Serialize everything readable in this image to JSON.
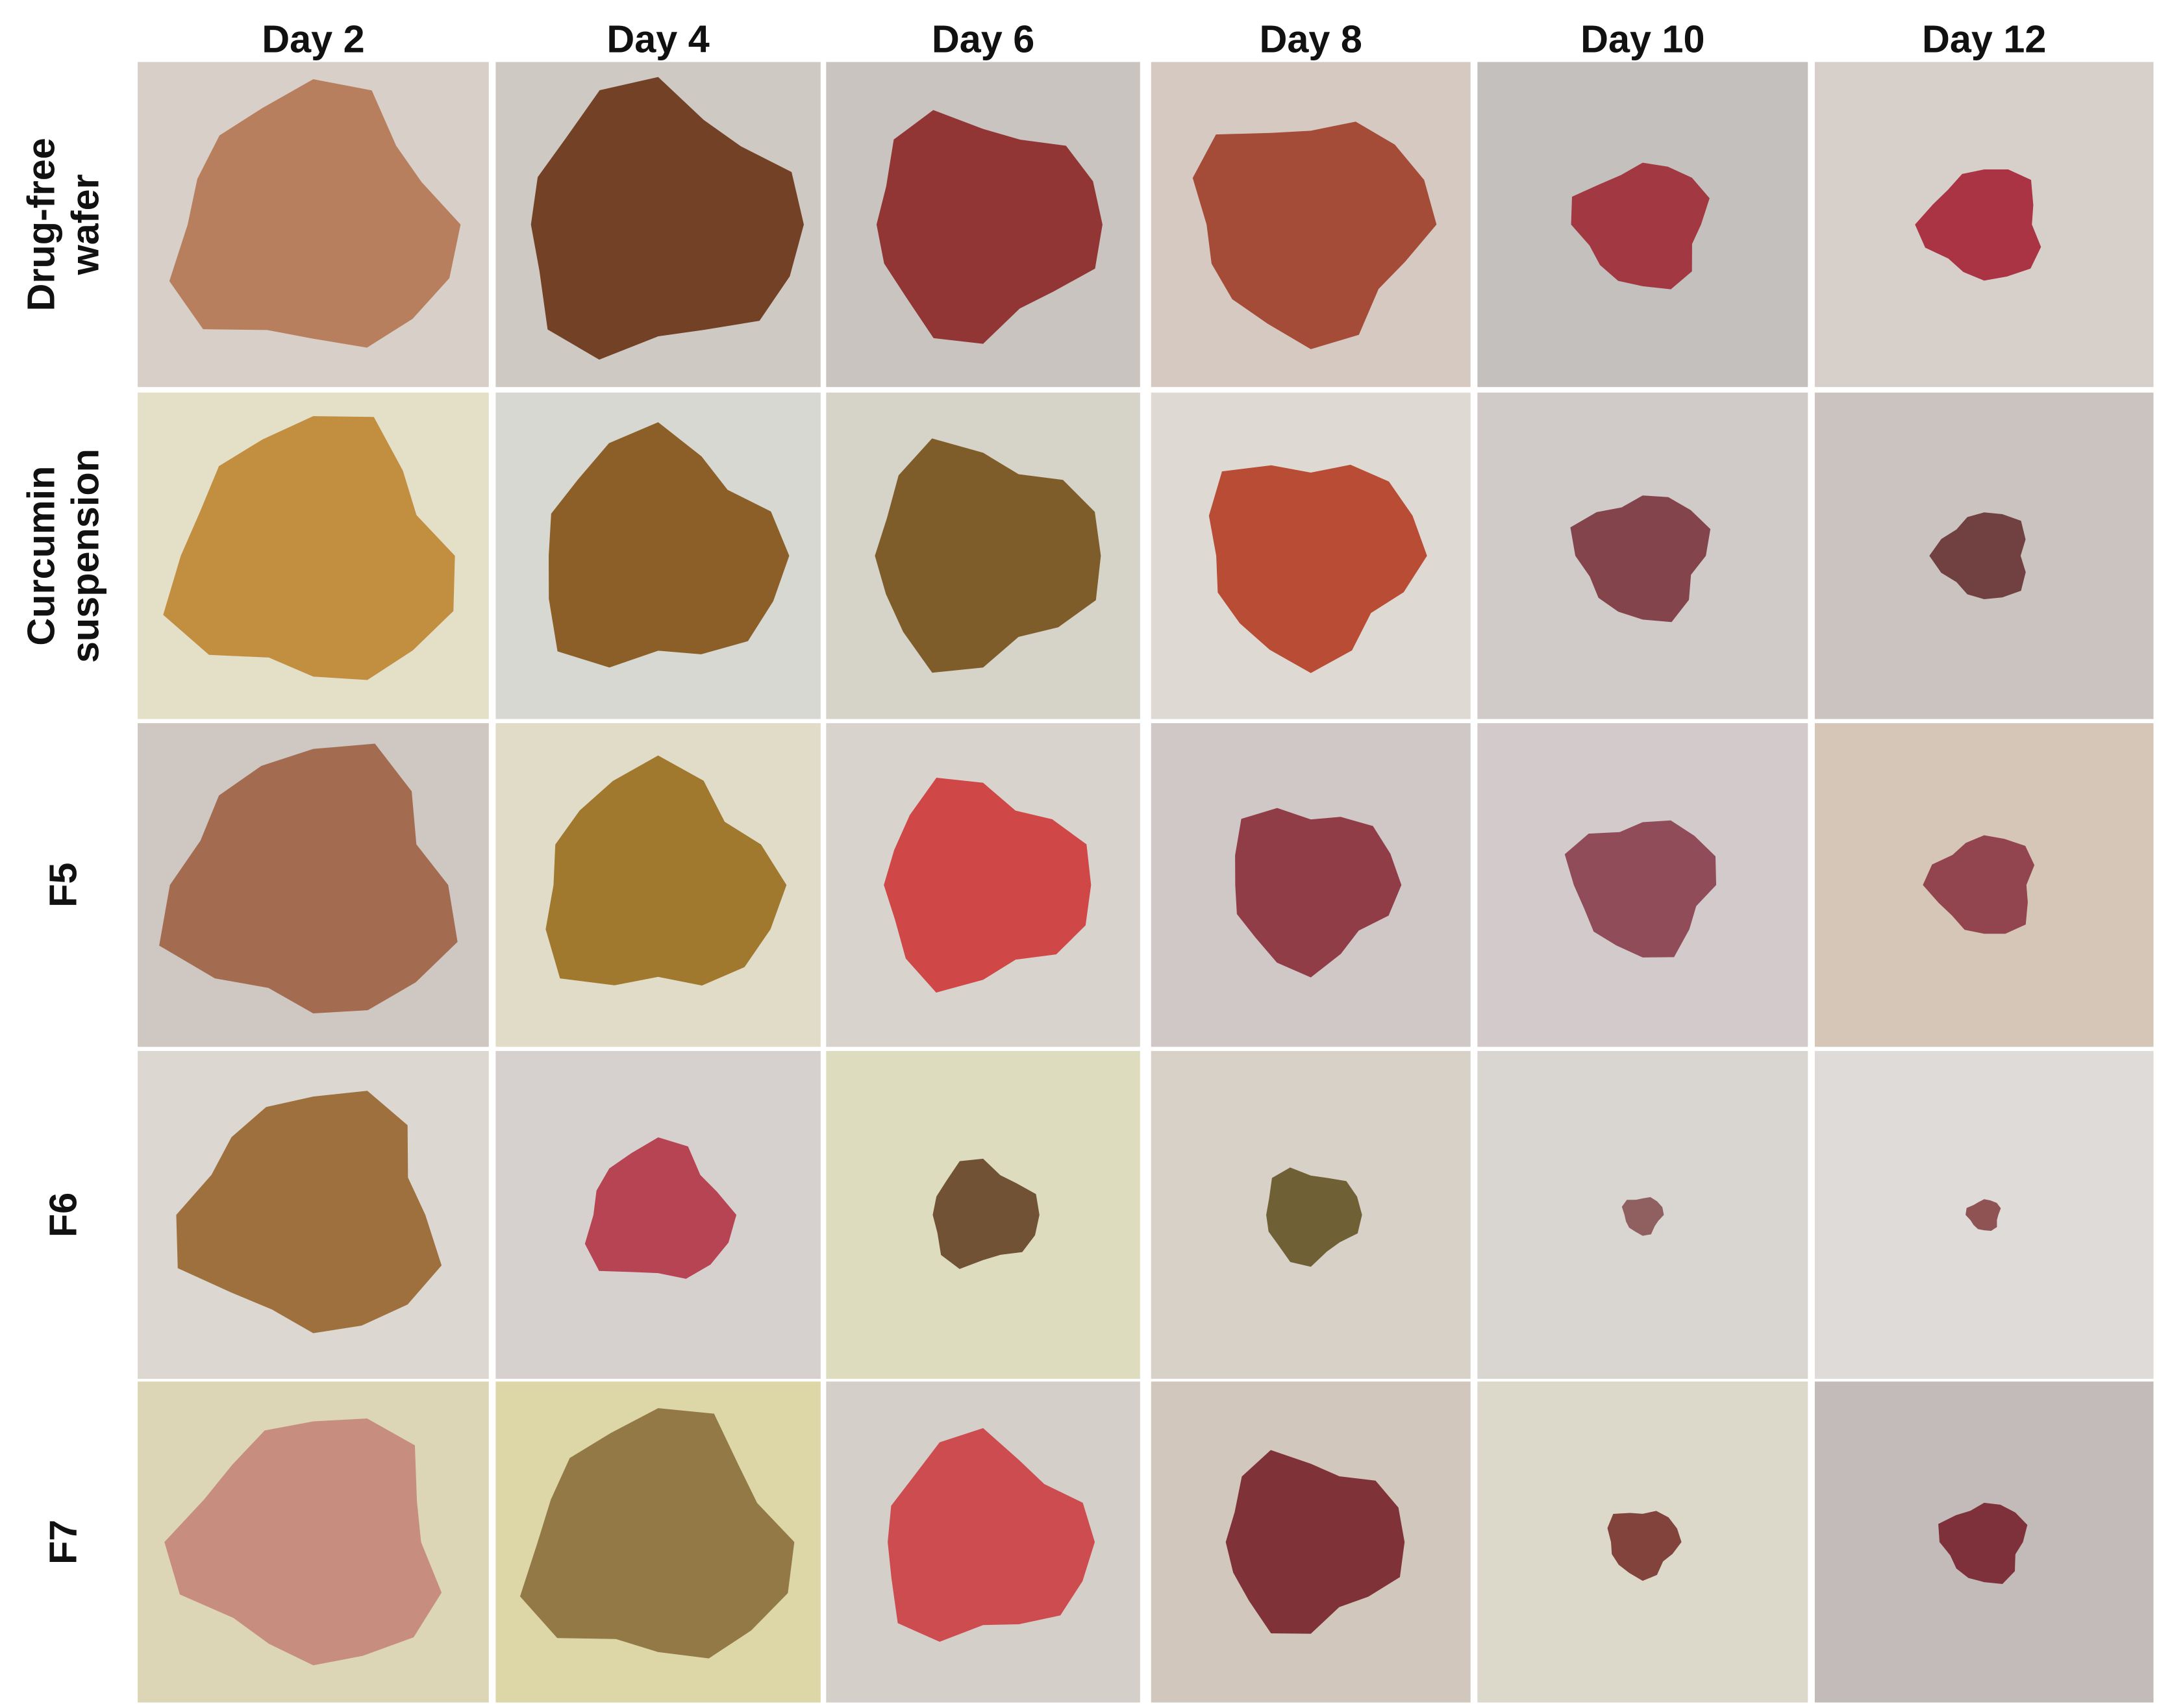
{
  "header": {
    "columns": [
      "Day 2",
      "Day 4",
      "Day 6",
      "Day 8",
      "Day 10",
      "Day 12"
    ]
  },
  "rows": [
    {
      "label_lines": [
        "Drug-free",
        "wafer"
      ]
    },
    {
      "label_lines": [
        "Curcumin",
        "suspension"
      ]
    },
    {
      "label_lines": [
        "F5"
      ]
    },
    {
      "label_lines": [
        "F6"
      ]
    },
    {
      "label_lines": [
        "F7"
      ]
    }
  ]
}
